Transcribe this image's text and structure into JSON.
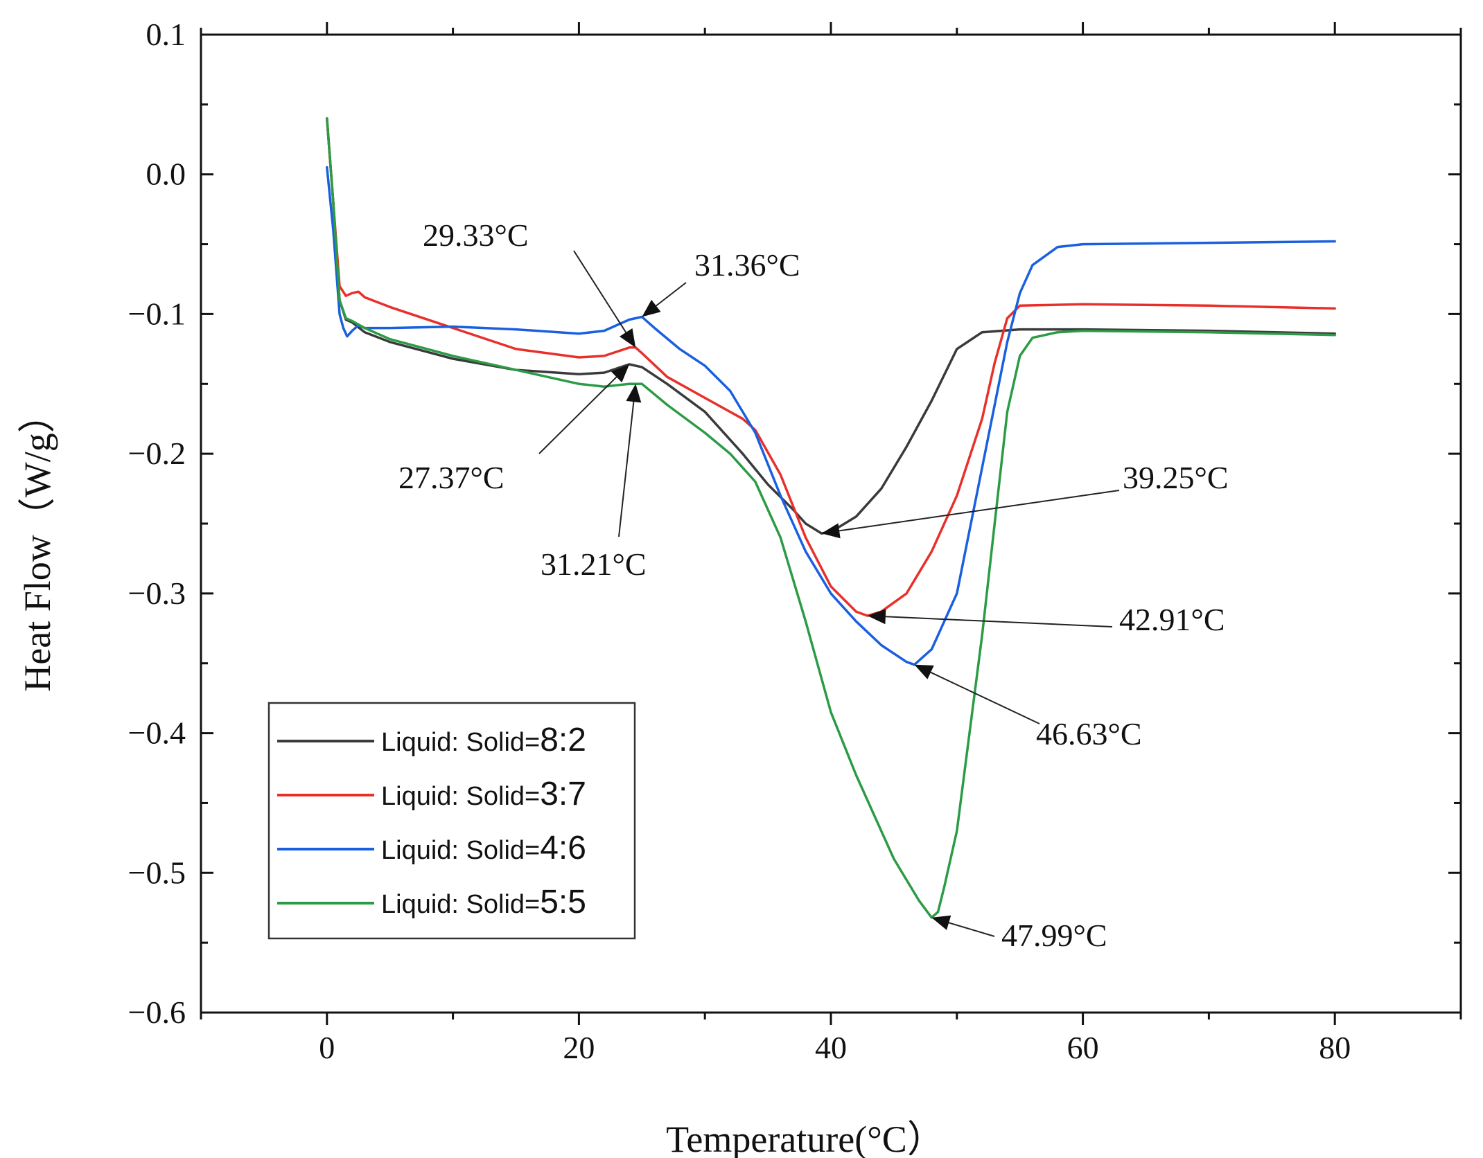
{
  "chart_data": {
    "type": "line",
    "title": "",
    "xlabel": "Temperature(°C）",
    "ylabel": "Heat Flow（W/g）",
    "xlim": [
      -10,
      90
    ],
    "ylim": [
      -0.6,
      0.1
    ],
    "xticks": [
      0,
      20,
      40,
      60,
      80
    ],
    "yticks": [
      0.1,
      0.0,
      -0.1,
      -0.2,
      -0.3,
      -0.4,
      -0.5,
      -0.6
    ],
    "ytick_labels": [
      "0.1",
      "0.0",
      "−0.1",
      "−0.2",
      "−0.3",
      "−0.4",
      "−0.5",
      "−0.6"
    ],
    "legend_position": "bottom-left",
    "grid": false,
    "series": [
      {
        "name": "Liquid: Solid=8:2",
        "prefix": "Liquid: Solid=",
        "ratio": "8:2",
        "color": "#3a3a3a",
        "x": [
          0,
          0.5,
          1,
          1.5,
          2,
          3,
          5,
          10,
          15,
          20,
          22,
          24,
          25,
          27,
          30,
          33,
          35,
          37,
          38,
          39.25,
          40,
          42,
          44,
          46,
          48,
          50,
          52,
          55,
          60,
          70,
          80
        ],
        "y": [
          0.04,
          -0.02,
          -0.09,
          -0.104,
          -0.106,
          -0.113,
          -0.12,
          -0.132,
          -0.14,
          -0.143,
          -0.142,
          -0.136,
          -0.138,
          -0.15,
          -0.17,
          -0.2,
          -0.222,
          -0.24,
          -0.25,
          -0.257,
          -0.256,
          -0.245,
          -0.225,
          -0.195,
          -0.162,
          -0.125,
          -0.113,
          -0.111,
          -0.111,
          -0.112,
          -0.114
        ]
      },
      {
        "name": "Liquid: Solid=3:7",
        "prefix": "Liquid: Solid=",
        "ratio": "3:7",
        "color": "#e8302b",
        "x": [
          0,
          0.5,
          1,
          1.5,
          2,
          2.5,
          3,
          5,
          10,
          15,
          20,
          22,
          24,
          24.5,
          25,
          27,
          30,
          33,
          34,
          36,
          38,
          40,
          42,
          42.91,
          44,
          46,
          48,
          50,
          52,
          53,
          54,
          55,
          60,
          70,
          80
        ],
        "y": [
          0.04,
          -0.02,
          -0.08,
          -0.087,
          -0.085,
          -0.084,
          -0.088,
          -0.095,
          -0.11,
          -0.125,
          -0.131,
          -0.13,
          -0.124,
          -0.124,
          -0.128,
          -0.145,
          -0.16,
          -0.175,
          -0.183,
          -0.215,
          -0.26,
          -0.295,
          -0.313,
          -0.316,
          -0.313,
          -0.3,
          -0.27,
          -0.23,
          -0.175,
          -0.135,
          -0.103,
          -0.094,
          -0.093,
          -0.094,
          -0.096
        ]
      },
      {
        "name": "Liquid: Solid=4:6",
        "prefix": "Liquid: Solid=",
        "ratio": "4:6",
        "color": "#1a5fe0",
        "x": [
          0,
          0.5,
          1,
          1.3,
          1.6,
          2,
          2.5,
          3,
          5,
          10,
          15,
          20,
          22,
          24,
          25,
          26,
          28,
          30,
          32,
          34,
          36,
          38,
          40,
          42,
          44,
          46,
          46.63,
          48,
          50,
          52,
          54,
          55,
          56,
          58,
          60,
          70,
          80
        ],
        "y": [
          0.005,
          -0.04,
          -0.1,
          -0.11,
          -0.116,
          -0.112,
          -0.108,
          -0.11,
          -0.11,
          -0.109,
          -0.111,
          -0.114,
          -0.112,
          -0.104,
          -0.102,
          -0.11,
          -0.125,
          -0.137,
          -0.155,
          -0.185,
          -0.23,
          -0.27,
          -0.3,
          -0.32,
          -0.337,
          -0.349,
          -0.351,
          -0.34,
          -0.3,
          -0.21,
          -0.12,
          -0.085,
          -0.065,
          -0.052,
          -0.05,
          -0.049,
          -0.048
        ]
      },
      {
        "name": "Liquid: Solid=5:5",
        "prefix": "Liquid: Solid=",
        "ratio": "5:5",
        "color": "#2b9b45",
        "x": [
          0,
          0.5,
          1,
          1.5,
          2,
          3,
          5,
          10,
          15,
          20,
          22,
          24,
          25,
          27,
          30,
          32,
          34,
          36,
          38,
          40,
          42,
          44,
          45,
          46,
          47,
          47.99,
          48.5,
          49,
          50,
          51,
          52,
          53,
          54,
          55,
          56,
          58,
          60,
          70,
          80
        ],
        "y": [
          0.04,
          -0.02,
          -0.09,
          -0.103,
          -0.105,
          -0.11,
          -0.118,
          -0.13,
          -0.14,
          -0.15,
          -0.152,
          -0.15,
          -0.15,
          -0.165,
          -0.185,
          -0.2,
          -0.22,
          -0.26,
          -0.32,
          -0.385,
          -0.43,
          -0.47,
          -0.49,
          -0.505,
          -0.52,
          -0.532,
          -0.528,
          -0.51,
          -0.47,
          -0.4,
          -0.33,
          -0.25,
          -0.17,
          -0.13,
          -0.117,
          -0.113,
          -0.112,
          -0.113,
          -0.115
        ]
      }
    ],
    "annotations": [
      {
        "label": "29.33°C",
        "series": 1,
        "x": 24.5,
        "y": -0.124
      },
      {
        "label": "31.36°C",
        "series": 2,
        "x": 25.0,
        "y": -0.102
      },
      {
        "label": "27.37°C",
        "series": 0,
        "x": 24.0,
        "y": -0.136
      },
      {
        "label": "31.21°C",
        "series": 3,
        "x": 24.5,
        "y": -0.15
      },
      {
        "label": "39.25°C",
        "series": 0,
        "x": 39.25,
        "y": -0.257
      },
      {
        "label": "42.91°C",
        "series": 1,
        "x": 42.91,
        "y": -0.316
      },
      {
        "label": "46.63°C",
        "series": 2,
        "x": 46.63,
        "y": -0.351
      },
      {
        "label": "47.99°C",
        "series": 3,
        "x": 47.99,
        "y": -0.532
      }
    ]
  }
}
